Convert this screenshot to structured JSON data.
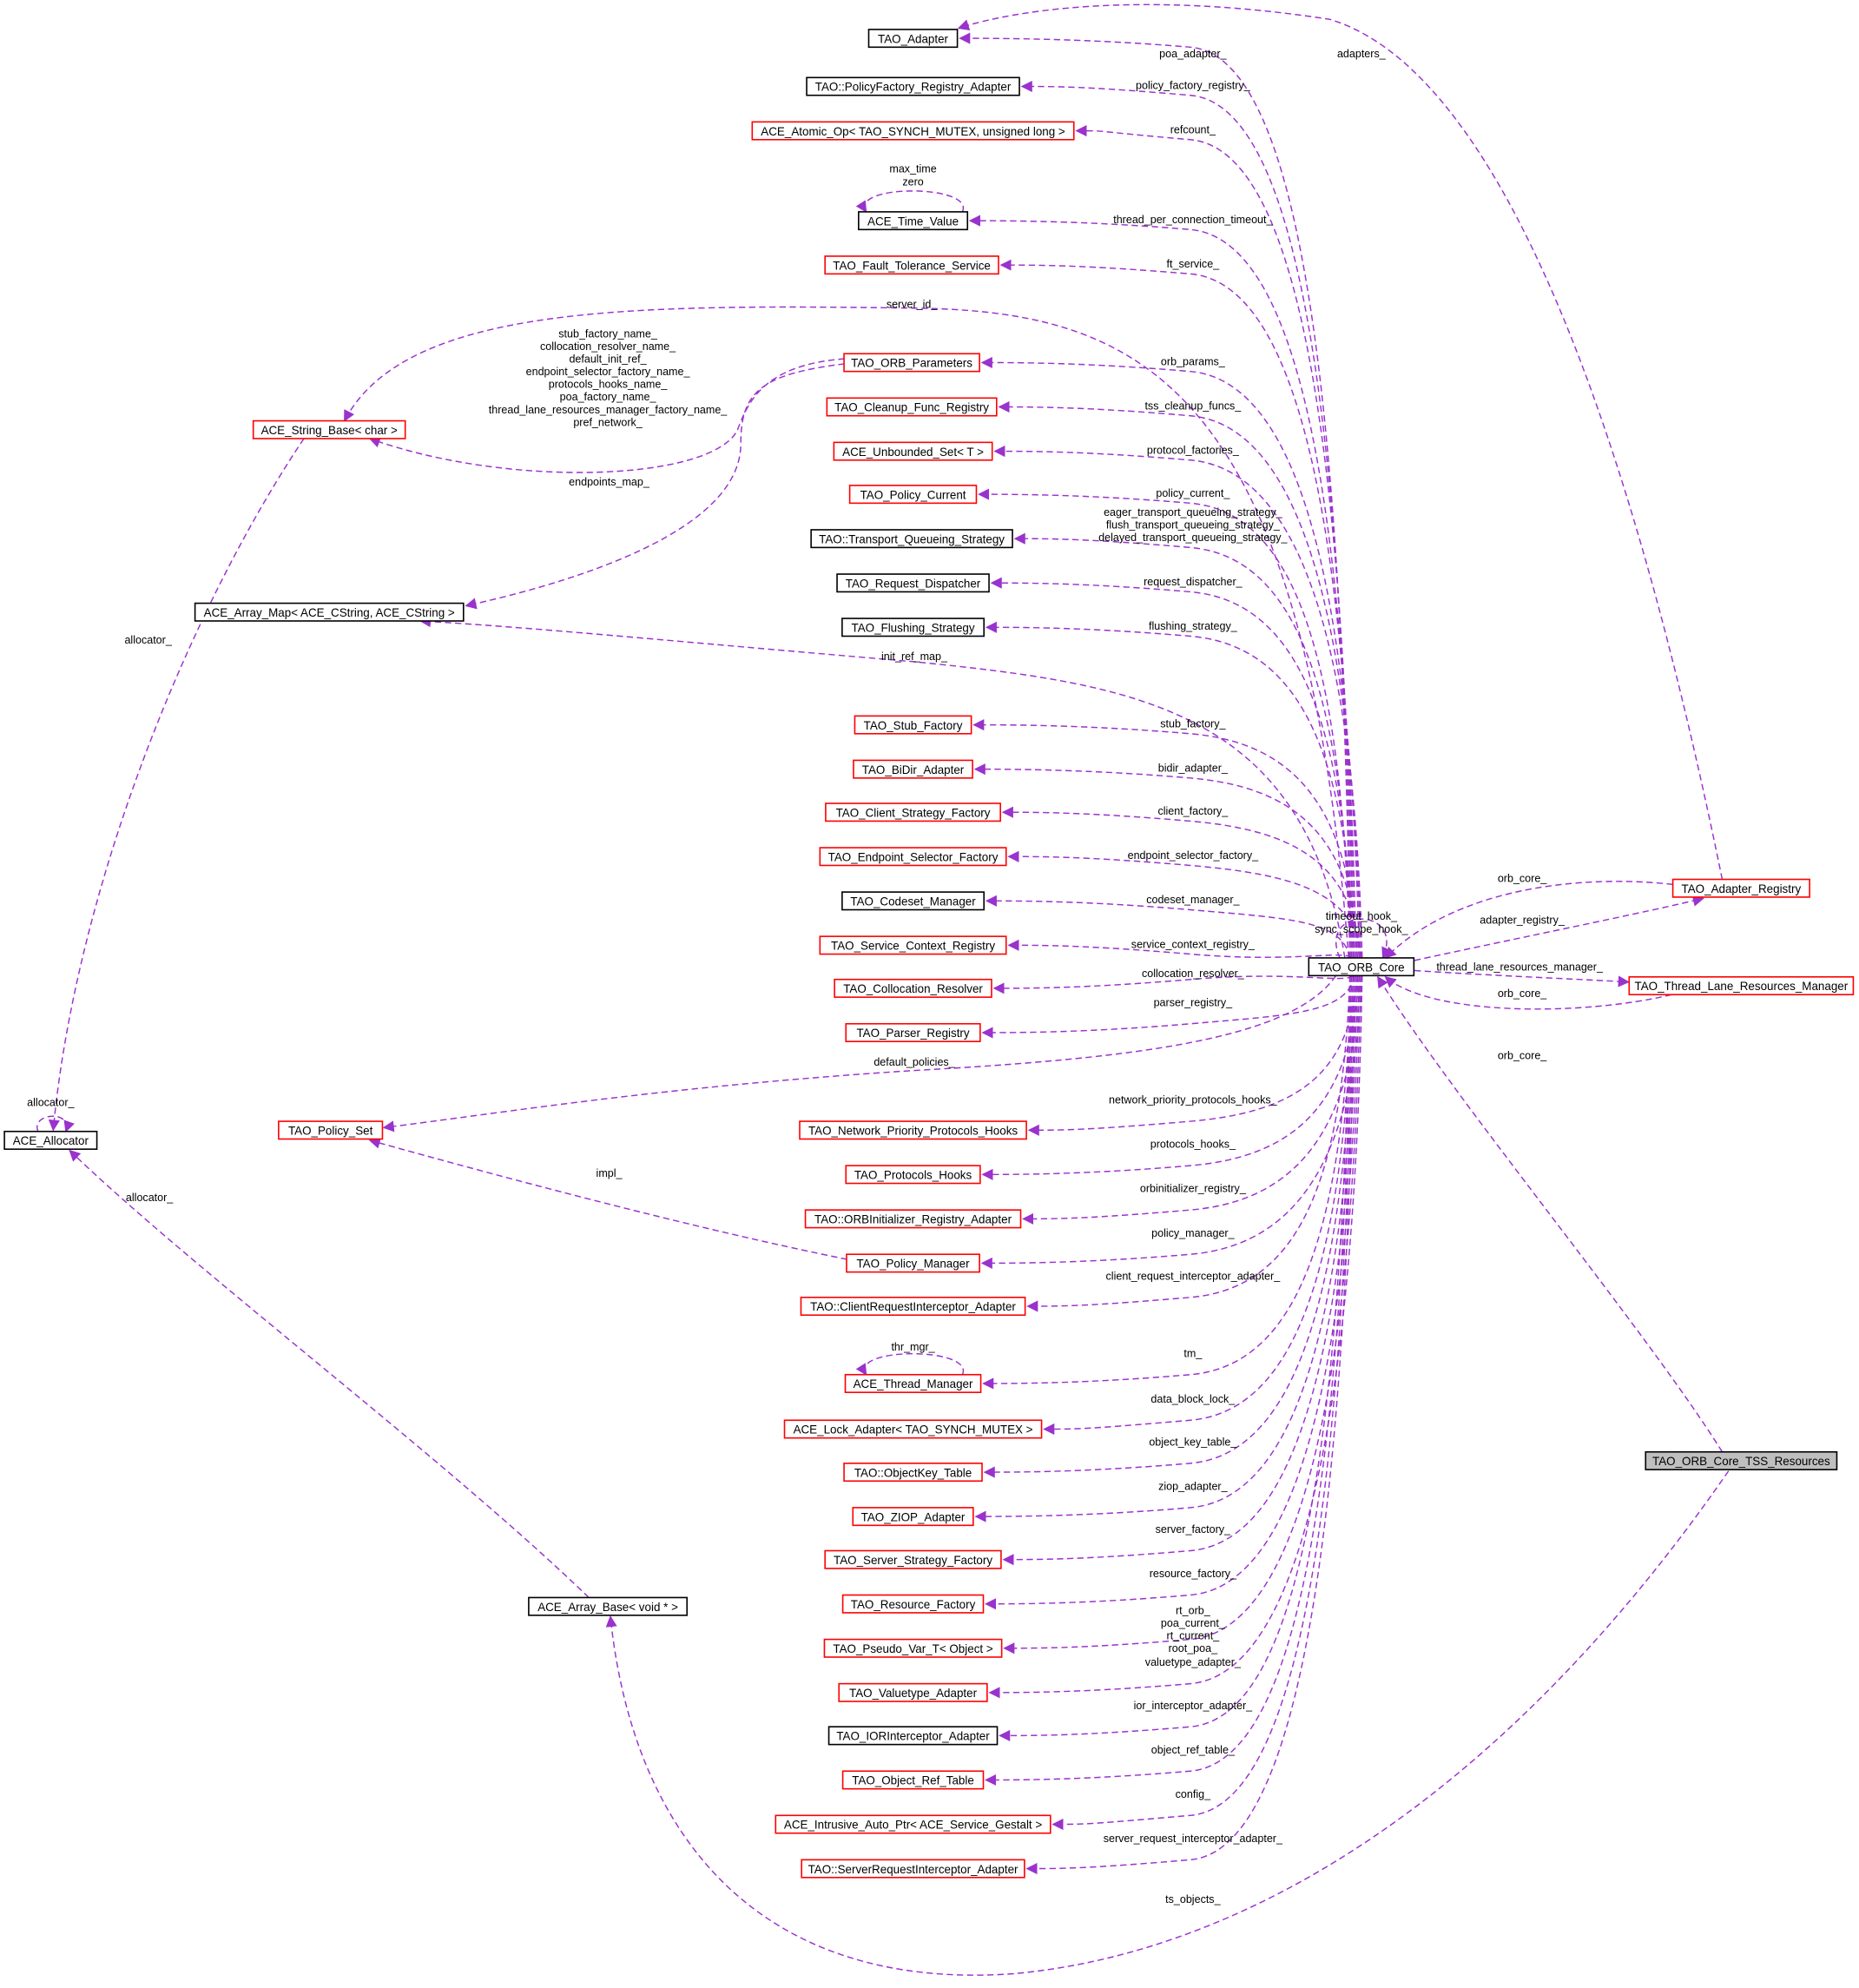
{
  "colors": {
    "edge": "#9a32cd",
    "border_red": "#ff0000",
    "border_black": "#000000",
    "focus_fill": "#bfbfbf"
  },
  "nodes": [
    {
      "id": "adapter",
      "label": "TAO_Adapter",
      "border": "black"
    },
    {
      "id": "pfra",
      "label": "TAO::PolicyFactory_Registry_Adapter",
      "border": "black"
    },
    {
      "id": "atomic",
      "label": "ACE_Atomic_Op< TAO_SYNCH_MUTEX, unsigned long >",
      "border": "red"
    },
    {
      "id": "timeval",
      "label": "ACE_Time_Value",
      "border": "black"
    },
    {
      "id": "fts",
      "label": "TAO_Fault_Tolerance_Service",
      "border": "red"
    },
    {
      "id": "orbparams",
      "label": "TAO_ORB_Parameters",
      "border": "red"
    },
    {
      "id": "cleanup",
      "label": "TAO_Cleanup_Func_Registry",
      "border": "red"
    },
    {
      "id": "unbset",
      "label": "ACE_Unbounded_Set< T >",
      "border": "red"
    },
    {
      "id": "polcur",
      "label": "TAO_Policy_Current",
      "border": "red"
    },
    {
      "id": "tqs",
      "label": "TAO::Transport_Queueing_Strategy",
      "border": "black"
    },
    {
      "id": "reqdisp",
      "label": "TAO_Request_Dispatcher",
      "border": "black"
    },
    {
      "id": "flush",
      "label": "TAO_Flushing_Strategy",
      "border": "black"
    },
    {
      "id": "stubf",
      "label": "TAO_Stub_Factory",
      "border": "red"
    },
    {
      "id": "bidir",
      "label": "TAO_BiDir_Adapter",
      "border": "red"
    },
    {
      "id": "csf",
      "label": "TAO_Client_Strategy_Factory",
      "border": "red"
    },
    {
      "id": "esf",
      "label": "TAO_Endpoint_Selector_Factory",
      "border": "red"
    },
    {
      "id": "codeset",
      "label": "TAO_Codeset_Manager",
      "border": "black"
    },
    {
      "id": "scr",
      "label": "TAO_Service_Context_Registry",
      "border": "red"
    },
    {
      "id": "collres",
      "label": "TAO_Collocation_Resolver",
      "border": "red"
    },
    {
      "id": "parser",
      "label": "TAO_Parser_Registry",
      "border": "red"
    },
    {
      "id": "npph",
      "label": "TAO_Network_Priority_Protocols_Hooks",
      "border": "red"
    },
    {
      "id": "ph",
      "label": "TAO_Protocols_Hooks",
      "border": "red"
    },
    {
      "id": "orbinit",
      "label": "TAO::ORBInitializer_Registry_Adapter",
      "border": "red"
    },
    {
      "id": "polmgr",
      "label": "TAO_Policy_Manager",
      "border": "red"
    },
    {
      "id": "cria",
      "label": "TAO::ClientRequestInterceptor_Adapter",
      "border": "red"
    },
    {
      "id": "thrmgr",
      "label": "ACE_Thread_Manager",
      "border": "red"
    },
    {
      "id": "lockad",
      "label": "ACE_Lock_Adapter< TAO_SYNCH_MUTEX >",
      "border": "red"
    },
    {
      "id": "okt",
      "label": "TAO::ObjectKey_Table",
      "border": "red"
    },
    {
      "id": "ziop",
      "label": "TAO_ZIOP_Adapter",
      "border": "red"
    },
    {
      "id": "ssf",
      "label": "TAO_Server_Strategy_Factory",
      "border": "red"
    },
    {
      "id": "resf",
      "label": "TAO_Resource_Factory",
      "border": "red"
    },
    {
      "id": "pseudo",
      "label": "TAO_Pseudo_Var_T< Object >",
      "border": "red"
    },
    {
      "id": "valuetype",
      "label": "TAO_Valuetype_Adapter",
      "border": "red"
    },
    {
      "id": "iorint",
      "label": "TAO_IORInterceptor_Adapter",
      "border": "black"
    },
    {
      "id": "ort",
      "label": "TAO_Object_Ref_Table",
      "border": "red"
    },
    {
      "id": "iap",
      "label": "ACE_Intrusive_Auto_Ptr< ACE_Service_Gestalt >",
      "border": "red"
    },
    {
      "id": "sria",
      "label": "TAO::ServerRequestInterceptor_Adapter",
      "border": "red"
    },
    {
      "id": "strbase",
      "label": "ACE_String_Base< char >",
      "border": "red"
    },
    {
      "id": "arrmap",
      "label": "ACE_Array_Map< ACE_CString, ACE_CString >",
      "border": "black"
    },
    {
      "id": "alloc",
      "label": "ACE_Allocator",
      "border": "black"
    },
    {
      "id": "polset",
      "label": "TAO_Policy_Set",
      "border": "red"
    },
    {
      "id": "arrbase",
      "label": "ACE_Array_Base< void * >",
      "border": "black"
    },
    {
      "id": "core",
      "label": "TAO_ORB_Core",
      "border": "black"
    },
    {
      "id": "adreg",
      "label": "TAO_Adapter_Registry",
      "border": "red"
    },
    {
      "id": "tlrm",
      "label": "TAO_Thread_Lane_Resources_Manager",
      "border": "red"
    },
    {
      "id": "tss",
      "label": "TAO_ORB_Core_TSS_Resources",
      "border": "black",
      "focus": true
    }
  ],
  "edges": [
    {
      "id": "e_poa",
      "from": "core",
      "to": "adapter",
      "labels": [
        "poa_adapter_"
      ]
    },
    {
      "id": "e_pfr",
      "from": "core",
      "to": "pfra",
      "labels": [
        "policy_factory_registry_"
      ]
    },
    {
      "id": "e_ref",
      "from": "core",
      "to": "atomic",
      "labels": [
        "refcount_"
      ]
    },
    {
      "id": "e_tpct",
      "from": "core",
      "to": "timeval",
      "labels": [
        "thread_per_connection_timeout_"
      ]
    },
    {
      "id": "e_ft",
      "from": "core",
      "to": "fts",
      "labels": [
        "ft_service_"
      ]
    },
    {
      "id": "e_sid",
      "from": "core",
      "to": "strbase",
      "labels": [
        "server_id_"
      ]
    },
    {
      "id": "e_op",
      "from": "core",
      "to": "orbparams",
      "labels": [
        "orb_params_"
      ]
    },
    {
      "id": "e_tss",
      "from": "core",
      "to": "cleanup",
      "labels": [
        "tss_cleanup_funcs_"
      ]
    },
    {
      "id": "e_pf",
      "from": "core",
      "to": "unbset",
      "labels": [
        "protocol_factories_"
      ]
    },
    {
      "id": "e_pc",
      "from": "core",
      "to": "polcur",
      "labels": [
        "policy_current_"
      ]
    },
    {
      "id": "e_tq",
      "from": "core",
      "to": "tqs",
      "labels": [
        "eager_transport_queueing_strategy_",
        "flush_transport_queueing_strategy_",
        "delayed_transport_queueing_strategy_"
      ]
    },
    {
      "id": "e_rd",
      "from": "core",
      "to": "reqdisp",
      "labels": [
        "request_dispatcher_"
      ]
    },
    {
      "id": "e_fs",
      "from": "core",
      "to": "flush",
      "labels": [
        "flushing_strategy_"
      ]
    },
    {
      "id": "e_irm",
      "from": "core",
      "to": "arrmap",
      "labels": [
        "init_ref_map_"
      ]
    },
    {
      "id": "e_sf",
      "from": "core",
      "to": "stubf",
      "labels": [
        "stub_factory_"
      ]
    },
    {
      "id": "e_bd",
      "from": "core",
      "to": "bidir",
      "labels": [
        "bidir_adapter_"
      ]
    },
    {
      "id": "e_cf",
      "from": "core",
      "to": "csf",
      "labels": [
        "client_factory_"
      ]
    },
    {
      "id": "e_es",
      "from": "core",
      "to": "esf",
      "labels": [
        "endpoint_selector_factory_"
      ]
    },
    {
      "id": "e_cm",
      "from": "core",
      "to": "codeset",
      "labels": [
        "codeset_manager_"
      ]
    },
    {
      "id": "e_sc",
      "from": "core",
      "to": "scr",
      "labels": [
        "service_context_registry_"
      ]
    },
    {
      "id": "e_cr",
      "from": "core",
      "to": "collres",
      "labels": [
        "collocation_resolver_"
      ]
    },
    {
      "id": "e_pr",
      "from": "core",
      "to": "parser",
      "labels": [
        "parser_registry_"
      ]
    },
    {
      "id": "e_dp",
      "from": "core",
      "to": "polset",
      "labels": [
        "default_policies_"
      ]
    },
    {
      "id": "e_np",
      "from": "core",
      "to": "npph",
      "labels": [
        "network_priority_protocols_hooks_"
      ]
    },
    {
      "id": "e_ph",
      "from": "core",
      "to": "ph",
      "labels": [
        "protocols_hooks_"
      ]
    },
    {
      "id": "e_oi",
      "from": "core",
      "to": "orbinit",
      "labels": [
        "orbinitializer_registry_"
      ]
    },
    {
      "id": "e_pm",
      "from": "core",
      "to": "polmgr",
      "labels": [
        "policy_manager_"
      ]
    },
    {
      "id": "e_cri",
      "from": "core",
      "to": "cria",
      "labels": [
        "client_request_interceptor_adapter_"
      ]
    },
    {
      "id": "e_tm",
      "from": "core",
      "to": "thrmgr",
      "labels": [
        "tm_"
      ]
    },
    {
      "id": "e_dbl",
      "from": "core",
      "to": "lockad",
      "labels": [
        "data_block_lock_"
      ]
    },
    {
      "id": "e_okt",
      "from": "core",
      "to": "okt",
      "labels": [
        "object_key_table_"
      ]
    },
    {
      "id": "e_ziop",
      "from": "core",
      "to": "ziop",
      "labels": [
        "ziop_adapter_"
      ]
    },
    {
      "id": "e_ssf",
      "from": "core",
      "to": "ssf",
      "labels": [
        "server_factory_"
      ]
    },
    {
      "id": "e_rf",
      "from": "core",
      "to": "resf",
      "labels": [
        "resource_factory_"
      ]
    },
    {
      "id": "e_pv",
      "from": "core",
      "to": "pseudo",
      "labels": [
        "rt_orb_",
        "poa_current_",
        "rt_current_",
        "root_poa_"
      ]
    },
    {
      "id": "e_va",
      "from": "core",
      "to": "valuetype",
      "labels": [
        "valuetype_adapter_"
      ]
    },
    {
      "id": "e_ior",
      "from": "core",
      "to": "iorint",
      "labels": [
        "ior_interceptor_adapter_"
      ]
    },
    {
      "id": "e_ort",
      "from": "core",
      "to": "ort",
      "labels": [
        "object_ref_table_"
      ]
    },
    {
      "id": "e_cfg",
      "from": "core",
      "to": "iap",
      "labels": [
        "config_"
      ]
    },
    {
      "id": "e_sri",
      "from": "core",
      "to": "sria",
      "labels": [
        "server_request_interceptor_adapter_"
      ]
    },
    {
      "id": "e_ts",
      "from": "tss",
      "to": "arrbase",
      "labels": [
        "ts_objects_"
      ]
    },
    {
      "id": "e_tsscore",
      "from": "tss",
      "to": "core",
      "labels": [
        "orb_core_"
      ]
    },
    {
      "id": "e_ads",
      "from": "adreg",
      "to": "adapter",
      "labels": [
        "adapters_"
      ]
    },
    {
      "id": "e_arcore",
      "from": "adreg",
      "to": "core",
      "labels": [
        "orb_core_"
      ]
    },
    {
      "id": "e_coreadr",
      "from": "core",
      "to": "adreg",
      "labels": [
        "adapter_registry_"
      ]
    },
    {
      "id": "e_coretl",
      "from": "core",
      "to": "tlrm",
      "labels": [
        "thread_lane_resources_manager_"
      ]
    },
    {
      "id": "e_tlcore",
      "from": "tlrm",
      "to": "core",
      "labels": [
        "orb_core_"
      ]
    },
    {
      "id": "e_coreself",
      "from": "core",
      "to": "core",
      "labels": [
        "timeout_hook_",
        "sync_scope_hook_"
      ]
    },
    {
      "id": "e_tvself",
      "from": "timeval",
      "to": "timeval",
      "labels": [
        "max_time",
        "zero"
      ]
    },
    {
      "id": "e_tmself",
      "from": "thrmgr",
      "to": "thrmgr",
      "labels": [
        "thr_mgr_"
      ]
    },
    {
      "id": "e_opstr",
      "from": "orbparams",
      "to": "strbase",
      "labels": [
        "stub_factory_name_",
        "collocation_resolver_name_",
        "default_init_ref_",
        "endpoint_selector_factory_name_",
        "protocols_hooks_name_",
        "poa_factory_name_",
        "thread_lane_resources_manager_factory_name_",
        "pref_network_"
      ]
    },
    {
      "id": "e_opmap",
      "from": "orbparams",
      "to": "arrmap",
      "labels": [
        "endpoints_map_"
      ]
    },
    {
      "id": "e_stralloc",
      "from": "strbase",
      "to": "alloc",
      "labels": [
        "allocator_"
      ]
    },
    {
      "id": "e_arralloc",
      "from": "arrbase",
      "to": "alloc",
      "labels": [
        "allocator_"
      ]
    },
    {
      "id": "e_allocself",
      "from": "alloc",
      "to": "alloc",
      "labels": [
        "allocator_"
      ]
    },
    {
      "id": "e_impl",
      "from": "polmgr",
      "to": "polset",
      "labels": [
        "impl_"
      ]
    }
  ]
}
